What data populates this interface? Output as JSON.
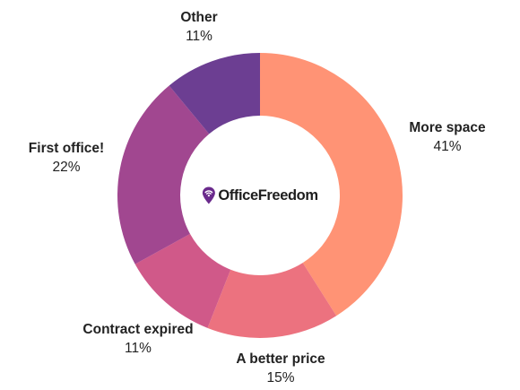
{
  "logo": {
    "text": "OfficeFreedom",
    "icon": "location-pin-wifi-icon",
    "icon_color": "#6a2a8c"
  },
  "chart_data": {
    "type": "pie",
    "variant": "donut",
    "title": "",
    "legend": "none",
    "slices": [
      {
        "label": "More space",
        "value": 41,
        "display": "41%",
        "color": "#ff9375"
      },
      {
        "label": "A better price",
        "value": 15,
        "display": "15%",
        "color": "#ec727f"
      },
      {
        "label": "Contract expired",
        "value": 11,
        "display": "11%",
        "color": "#d05989"
      },
      {
        "label": "First office!",
        "value": 22,
        "display": "22%",
        "color": "#a14790"
      },
      {
        "label": "Other",
        "value": 11,
        "display": "11%",
        "color": "#6c3e92"
      }
    ]
  }
}
